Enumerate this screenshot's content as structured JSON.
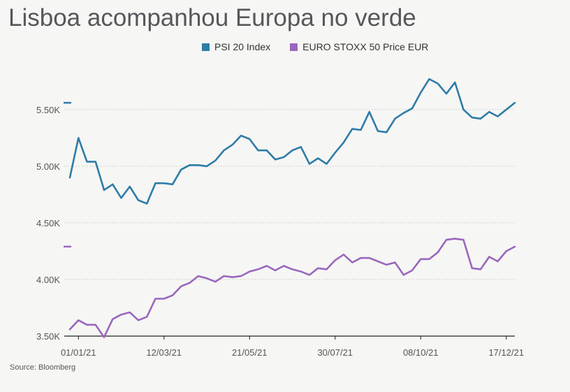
{
  "title": "Lisboa acompanhou Europa no verde",
  "source": "Source: Bloomberg",
  "colors": {
    "psi": "#2e7ca8",
    "stoxx": "#9a67bd",
    "grid": "#cfcfcf",
    "axis": "#222222",
    "background": "#f6f6f4"
  },
  "chart_data": {
    "type": "line",
    "title": "Lisboa acompanhou Europa no verde",
    "xlabel": "",
    "ylabel": "",
    "ylim": [
      3.5,
      5.9
    ],
    "yticks": [
      3.5,
      4.0,
      4.5,
      5.0,
      5.5
    ],
    "yticklabels": [
      "3.50K",
      "4.00K",
      "4.50K",
      "5.00K",
      "5.50K"
    ],
    "xticklabels": [
      "01/01/21",
      "12/03/21",
      "21/05/21",
      "30/07/21",
      "08/10/21",
      "17/12/21"
    ],
    "xtick_index": [
      1,
      11,
      21,
      31,
      41,
      51
    ],
    "grid": true,
    "legend": "top",
    "series": [
      {
        "name": "PSI 20 Index",
        "color": "#2e7ca8",
        "last_value_marker": 5.56,
        "values": [
          4.9,
          5.25,
          5.04,
          5.04,
          4.79,
          4.84,
          4.72,
          4.82,
          4.7,
          4.67,
          4.85,
          4.85,
          4.84,
          4.97,
          5.01,
          5.01,
          5.0,
          5.05,
          5.14,
          5.19,
          5.27,
          5.24,
          5.14,
          5.14,
          5.06,
          5.08,
          5.14,
          5.17,
          5.02,
          5.07,
          5.02,
          5.12,
          5.21,
          5.33,
          5.32,
          5.48,
          5.31,
          5.3,
          5.42,
          5.47,
          5.51,
          5.65,
          5.77,
          5.73,
          5.64,
          5.74,
          5.5,
          5.43,
          5.42,
          5.48,
          5.44,
          5.5,
          5.56
        ]
      },
      {
        "name": "EURO STOXX 50 Price EUR",
        "color": "#9a67bd",
        "last_value_marker": 4.29,
        "values": [
          3.56,
          3.64,
          3.6,
          3.6,
          3.49,
          3.65,
          3.69,
          3.71,
          3.64,
          3.67,
          3.83,
          3.83,
          3.86,
          3.94,
          3.97,
          4.03,
          4.01,
          3.98,
          4.03,
          4.02,
          4.03,
          4.07,
          4.09,
          4.12,
          4.08,
          4.12,
          4.09,
          4.07,
          4.04,
          4.1,
          4.09,
          4.17,
          4.22,
          4.15,
          4.19,
          4.19,
          4.16,
          4.13,
          4.15,
          4.04,
          4.08,
          4.18,
          4.18,
          4.24,
          4.35,
          4.36,
          4.35,
          4.1,
          4.09,
          4.2,
          4.16,
          4.25,
          4.29
        ]
      }
    ]
  }
}
